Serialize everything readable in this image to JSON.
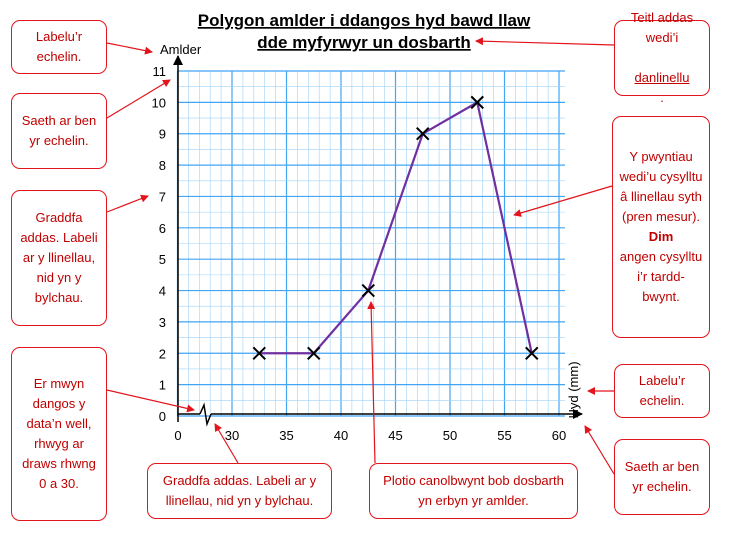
{
  "chart_data": {
    "type": "line",
    "title_lines": [
      "Polygon amlder i ddangos hyd bawd llaw",
      "dde myfyrwyr un dosbarth"
    ],
    "xlabel": "Hyd (mm)",
    "ylabel": "Amlder",
    "x_ticks": [
      0,
      30,
      35,
      40,
      45,
      50,
      55,
      60
    ],
    "y_ticks": [
      0,
      1,
      2,
      3,
      4,
      5,
      6,
      7,
      8,
      9,
      10,
      11
    ],
    "xlim": [
      25,
      60
    ],
    "ylim": [
      0,
      11
    ],
    "grid": true,
    "axis_break": true,
    "series": [
      {
        "x": [
          32.5,
          37.5,
          42.5,
          47.5,
          52.5,
          57.5
        ],
        "y": [
          2,
          2,
          4,
          9,
          10,
          2
        ]
      }
    ],
    "colors": {
      "grid": "#42a5f5",
      "grid_minor": "#9fd2f7",
      "line": "#7030a0",
      "annotation": "#e3141c",
      "annotation_text": "#c00000"
    }
  },
  "annotations": {
    "axis_label_left": "Labelu’r echelin.",
    "arrow_top_left": "Saeth ar ben yr echelin.",
    "scale_left": "Graddfa addas. Labeli ar y llinellau, nid yn y bylchau.",
    "break_note": "Er mwyn dangos y data’n well, rhwyg ar draws rhwng 0 a 30.",
    "scale_bottom": "Graddfa addas. Labeli ar y llinellau, nid yn y bylchau.",
    "midpoint_note": "Plotio canolbwynt bob dosbarth yn erbyn yr amlder.",
    "title_note_1": "Teitl addas wedi’i",
    "title_note_2": "danlinellu",
    "title_note_3": ".",
    "join_note_1": "Y pwyntiau wedi’u cysylltu â llinellau syth (pren mesur).",
    "join_note_bold": "Dim",
    "join_note_2": "angen cysylltu i’r tardd-bwynt.",
    "axis_label_right": "Labelu’r echelin.",
    "arrow_bottom_right": "Saeth ar ben yr echelin."
  }
}
